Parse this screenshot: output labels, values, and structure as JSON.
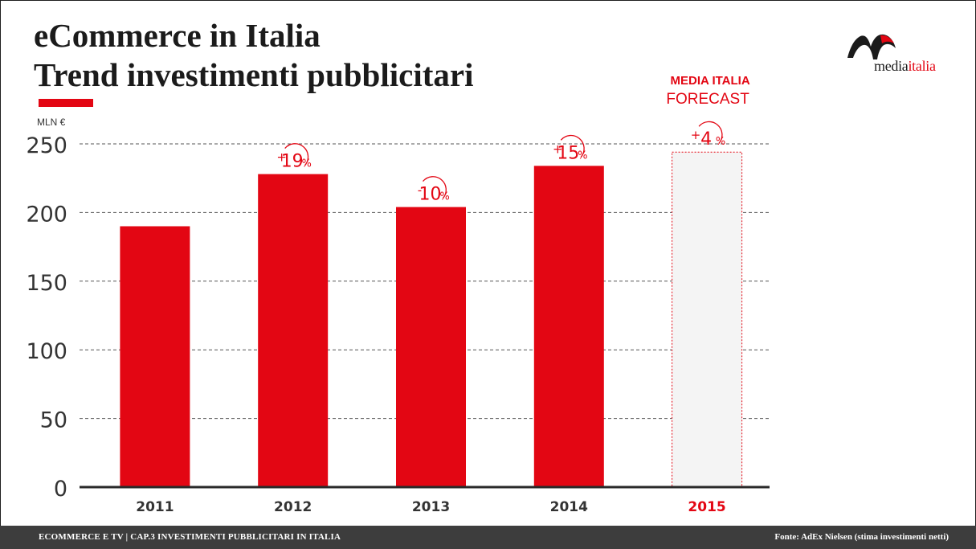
{
  "title_lines": [
    "eCommerce in Italia",
    "Trend investimenti pubblicitari"
  ],
  "logo": {
    "prefix": "media",
    "highlight": "italia"
  },
  "footer": {
    "left": "ECOMMERCE E TV | CAP.3 INVESTIMENTI PUBBLICITARI IN ITALIA",
    "right": "Fonte: AdEx Nielsen (stima investimenti netti)"
  },
  "colors": {
    "accent": "#e30613",
    "text": "#1b1b1b",
    "footer_bg": "#3d3d3d",
    "forecast_fill": "#f4f4f4"
  },
  "chart_data": {
    "type": "bar",
    "unit_label": "MLN €",
    "categories": [
      "2011",
      "2012",
      "2013",
      "2014",
      "2015"
    ],
    "values": [
      190,
      228,
      204,
      234,
      244
    ],
    "forecast_index": 4,
    "forecast_label": [
      "MEDIA ITALIA",
      "FORECAST"
    ],
    "changes": [
      null,
      {
        "sign": "+",
        "num": "19",
        "pct": "%"
      },
      {
        "sign": "-",
        "num": "10",
        "pct": "%"
      },
      {
        "sign": "+",
        "num": "15",
        "pct": "%"
      },
      {
        "sign": "+",
        "num": "4",
        "pct": "%"
      }
    ],
    "yticks": [
      "0",
      "50",
      "100",
      "150",
      "200",
      "250"
    ],
    "ylim": [
      0,
      250
    ],
    "grid": true,
    "legend": "none"
  }
}
